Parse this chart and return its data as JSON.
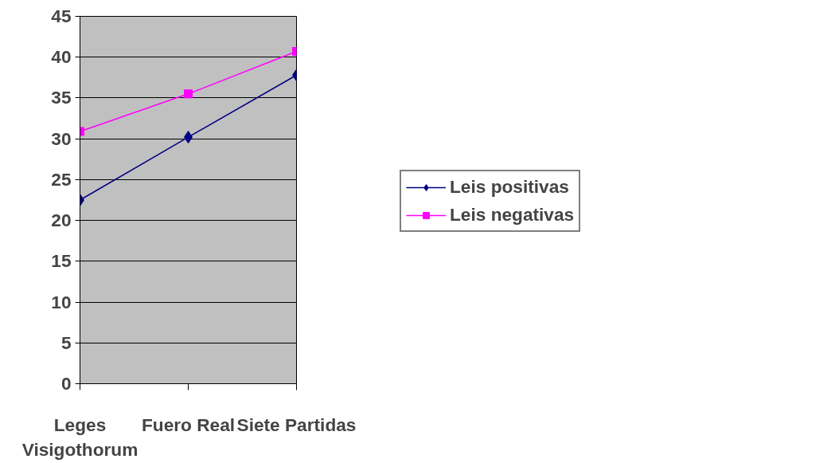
{
  "chart_data": {
    "type": "line",
    "categories": [
      "Leges\nVisigothorum",
      "Fuero Real",
      "Siete Partidas"
    ],
    "series": [
      {
        "name": "Leis positivas",
        "color": "#000080",
        "marker": "diamond",
        "values": [
          22.5,
          30.2,
          37.8
        ]
      },
      {
        "name": "Leis negativas",
        "color": "#ff00ff",
        "marker": "square",
        "values": [
          30.9,
          35.5,
          40.7
        ]
      }
    ],
    "ylim": [
      0,
      45
    ],
    "yticks": [
      0,
      5,
      10,
      15,
      20,
      25,
      30,
      35,
      40,
      45
    ],
    "grid": "y",
    "legend": "right"
  }
}
